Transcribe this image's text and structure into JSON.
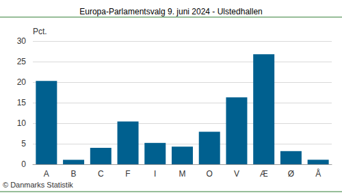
{
  "chart_data": {
    "type": "bar",
    "title": "Europa-Parlamentsvalg 9. juni 2024 - Ulstedhallen",
    "ylabel": "Pct.",
    "annotation": "© Danmarks Statistik",
    "categories": [
      "A",
      "B",
      "C",
      "F",
      "I",
      "M",
      "O",
      "V",
      "Æ",
      "Ø",
      "Å"
    ],
    "values": [
      20.3,
      1.1,
      4.0,
      10.4,
      5.2,
      4.3,
      7.9,
      16.3,
      26.8,
      3.2,
      1.1
    ],
    "color": "#00608f",
    "ylim": [
      0,
      30
    ],
    "yticks": [
      0,
      5,
      10,
      15,
      20,
      25,
      30
    ],
    "grid": true
  }
}
